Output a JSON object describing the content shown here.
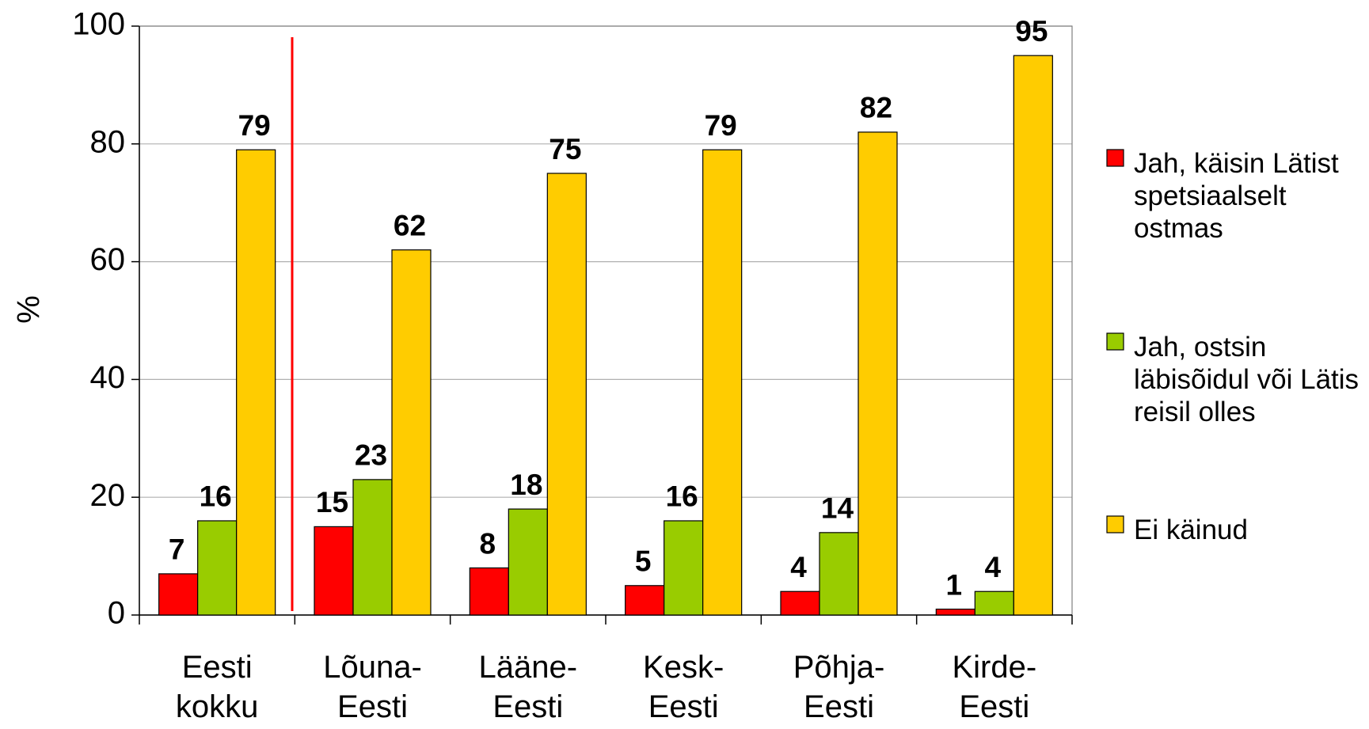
{
  "chart_data": {
    "type": "bar",
    "y_label": "%",
    "categories": [
      [
        "Eesti",
        "kokku"
      ],
      [
        "Lõuna-",
        "Eesti"
      ],
      [
        "Lääne-",
        "Eesti"
      ],
      [
        "Kesk-",
        "Eesti"
      ],
      [
        "Põhja-",
        "Eesti"
      ],
      [
        "Kirde-",
        "Eesti"
      ]
    ],
    "series": [
      {
        "name": "Jah, käisin Lätist spetsiaalselt ostmas",
        "color": "#ff0000",
        "values": [
          7,
          15,
          8,
          5,
          4,
          1
        ]
      },
      {
        "name": "Jah, ostsin läbisõidul või Lätis reisil olles",
        "color": "#99cc00",
        "values": [
          16,
          23,
          18,
          16,
          14,
          4
        ]
      },
      {
        "name": "Ei käinud",
        "color": "#ffcc00",
        "values": [
          79,
          62,
          75,
          79,
          82,
          95
        ]
      }
    ],
    "ylim": [
      0,
      100
    ],
    "yticks": [
      0,
      20,
      40,
      60,
      80,
      100
    ],
    "grid": true,
    "legend": "right"
  }
}
